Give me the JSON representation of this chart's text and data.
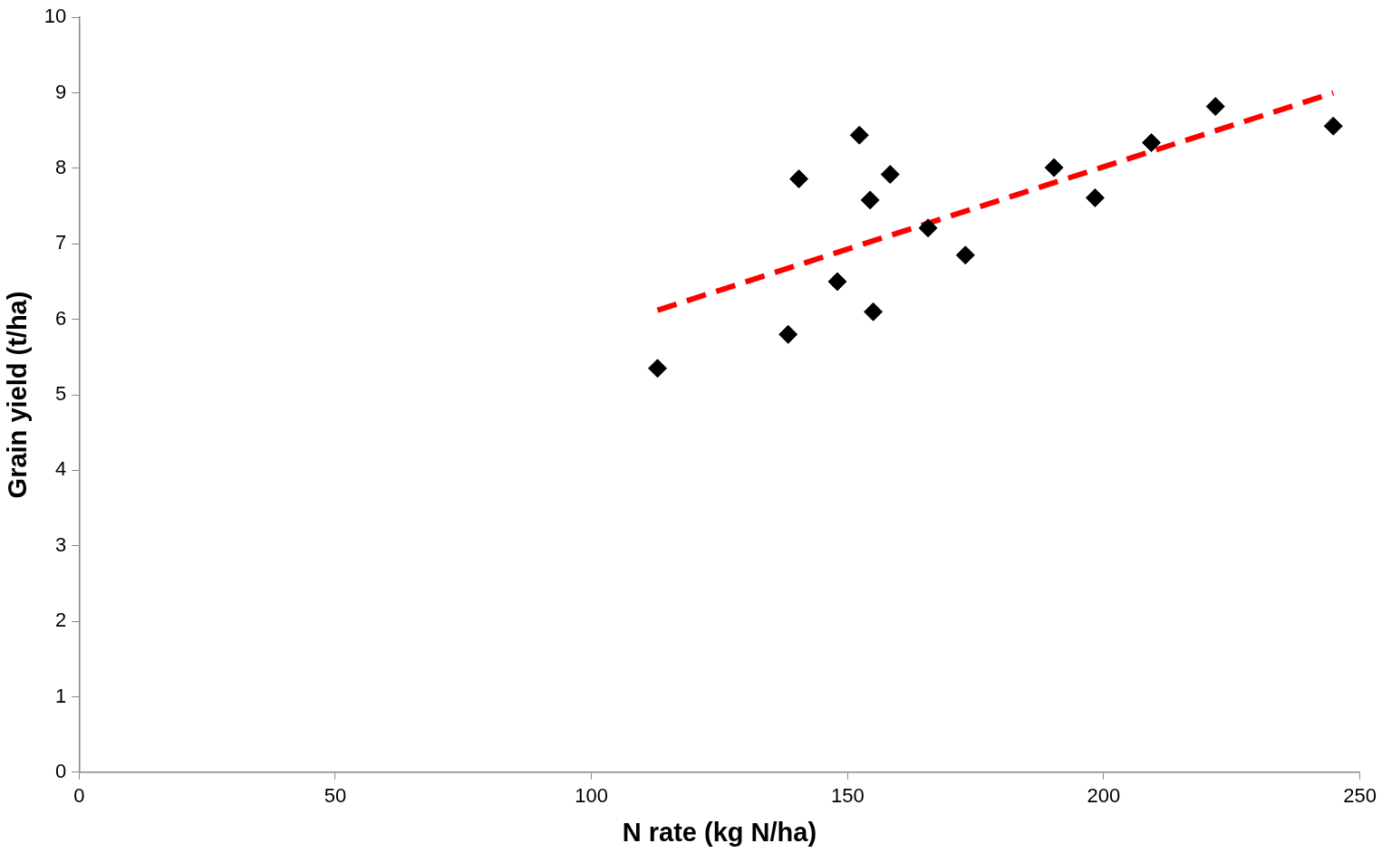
{
  "chart_data": {
    "type": "scatter",
    "xlabel": "N rate (kg N/ha)",
    "ylabel": "Grain yield (t/ha)",
    "xlim": [
      0,
      250
    ],
    "xticks": [
      0,
      50,
      100,
      150,
      200,
      250
    ],
    "ylim": [
      0,
      10
    ],
    "yticks": [
      0,
      1,
      2,
      3,
      4,
      5,
      6,
      7,
      8,
      9,
      10
    ],
    "grid": false,
    "legend": false,
    "series": [
      {
        "type": "scatter",
        "color": "#000000",
        "marker": "diamond",
        "x": [
          112.9,
          138.4,
          140.5,
          148.0,
          152.3,
          154.4,
          155.0,
          158.3,
          165.7,
          173.0,
          190.3,
          198.3,
          209.3,
          221.8,
          244.8
        ],
        "values": [
          5.35,
          5.8,
          7.86,
          6.5,
          8.44,
          7.58,
          6.1,
          7.92,
          7.21,
          6.85,
          8.01,
          7.61,
          8.34,
          8.82,
          8.56
        ]
      },
      {
        "type": "line",
        "color": "#ff0000",
        "marker": "none",
        "line_style": "dashed",
        "x": [
          112.9,
          244.8
        ],
        "values": [
          6.12,
          9.0
        ]
      }
    ]
  }
}
